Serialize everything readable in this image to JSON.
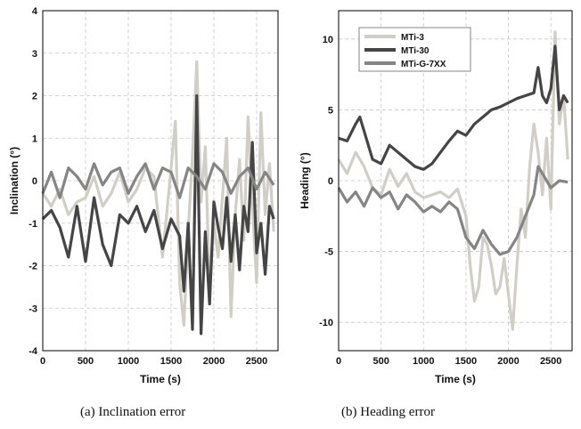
{
  "captions": {
    "a": "(a) Inclination error",
    "b": "(b) Heading error"
  },
  "chart_data": [
    {
      "type": "line",
      "xlabel": "Time (s)",
      "ylabel": "Inclination (°)",
      "xlim": [
        0,
        2750
      ],
      "ylim": [
        -4,
        4
      ],
      "xticks": [
        "0",
        "500",
        "1000",
        "1500",
        "2000",
        "2500"
      ],
      "yticks": [
        "-4",
        "-3",
        "-2",
        "-1",
        "0",
        "1",
        "2",
        "3",
        "4"
      ],
      "grid": true,
      "colors": {
        "MTi-3": "#d0cec6",
        "MTi-30": "#454545",
        "MTi-G-7XX": "#858585"
      },
      "series": [
        {
          "name": "MTi-3",
          "x": [
            0,
            100,
            200,
            300,
            400,
            500,
            600,
            700,
            800,
            900,
            1000,
            1100,
            1200,
            1300,
            1400,
            1500,
            1550,
            1600,
            1650,
            1700,
            1750,
            1800,
            1850,
            1900,
            1950,
            2000,
            2050,
            2100,
            2150,
            2200,
            2250,
            2300,
            2350,
            2400,
            2450,
            2500,
            2550,
            2600,
            2650,
            2700
          ],
          "values": [
            -0.3,
            -0.6,
            -0.2,
            -0.8,
            -0.5,
            -0.4,
            0.1,
            -0.6,
            -0.3,
            0.2,
            -0.5,
            -0.2,
            0.3,
            0.1,
            -1.8,
            0.3,
            1.4,
            -2.4,
            -3.4,
            -1.2,
            0.6,
            2.8,
            -0.5,
            0.8,
            -2.6,
            -1.0,
            -1.8,
            -0.4,
            1.0,
            -3.2,
            -0.8,
            0.5,
            -1.4,
            1.5,
            -0.6,
            -2.4,
            1.6,
            -0.8,
            0.4,
            -1.2
          ]
        },
        {
          "name": "MTi-30",
          "x": [
            0,
            100,
            200,
            300,
            400,
            500,
            600,
            700,
            800,
            900,
            1000,
            1100,
            1200,
            1300,
            1400,
            1500,
            1600,
            1650,
            1700,
            1750,
            1800,
            1850,
            1900,
            1950,
            2000,
            2050,
            2100,
            2150,
            2200,
            2250,
            2300,
            2350,
            2400,
            2450,
            2500,
            2550,
            2600,
            2650,
            2700
          ],
          "values": [
            -0.9,
            -0.7,
            -1.1,
            -1.8,
            -0.6,
            -1.9,
            -0.4,
            -1.5,
            -2.0,
            -0.8,
            -1.0,
            -0.6,
            -1.2,
            -0.7,
            -1.6,
            -0.9,
            -1.3,
            -2.6,
            -1.0,
            -3.5,
            2.0,
            -3.6,
            -1.2,
            -2.9,
            -0.5,
            -1.1,
            -1.6,
            -0.4,
            -1.9,
            -0.8,
            -2.1,
            -0.6,
            -1.2,
            0.9,
            -1.7,
            -1.0,
            -2.2,
            -0.6,
            -0.9
          ]
        },
        {
          "name": "MTi-G-7XX",
          "x": [
            0,
            100,
            200,
            300,
            400,
            500,
            600,
            700,
            800,
            900,
            1000,
            1100,
            1200,
            1300,
            1400,
            1500,
            1600,
            1700,
            1800,
            1900,
            2000,
            2100,
            2200,
            2300,
            2400,
            2500,
            2600,
            2700
          ],
          "values": [
            -0.3,
            0.2,
            -0.4,
            0.3,
            0.1,
            -0.2,
            0.4,
            -0.1,
            0.2,
            0.3,
            -0.3,
            0.1,
            0.4,
            -0.2,
            0.3,
            0.2,
            -0.4,
            0.3,
            0.1,
            -0.2,
            0.4,
            0.2,
            -0.3,
            0.1,
            0.3,
            -0.2,
            0.2,
            -0.1
          ]
        }
      ]
    },
    {
      "type": "line",
      "xlabel": "Time (s)",
      "ylabel": "Heading (°)",
      "xlim": [
        0,
        2750
      ],
      "ylim": [
        -12,
        12
      ],
      "xticks": [
        "0",
        "500",
        "1000",
        "1500",
        "2000",
        "2500"
      ],
      "yticks": [
        "-10",
        "-5",
        "0",
        "5",
        "10"
      ],
      "grid": true,
      "legend": "top-left",
      "colors": {
        "MTi-3": "#d0cec6",
        "MTi-30": "#454545",
        "MTi-G-7XX": "#858585"
      },
      "series": [
        {
          "name": "MTi-3",
          "x": [
            0,
            100,
            200,
            300,
            400,
            500,
            600,
            700,
            800,
            900,
            1000,
            1100,
            1200,
            1300,
            1400,
            1500,
            1550,
            1600,
            1650,
            1700,
            1750,
            1800,
            1850,
            1900,
            1950,
            2000,
            2050,
            2100,
            2150,
            2200,
            2250,
            2300,
            2350,
            2400,
            2450,
            2500,
            2550,
            2600,
            2650,
            2700
          ],
          "values": [
            1.5,
            0.5,
            2.0,
            1.0,
            -0.5,
            -1.0,
            0.8,
            -0.4,
            0.5,
            -0.8,
            -1.2,
            -1.0,
            -0.8,
            -1.2,
            -0.6,
            -2.5,
            -6.0,
            -8.5,
            -7.5,
            -4.0,
            -4.5,
            -6.0,
            -8.0,
            -7.5,
            -5.5,
            -8.0,
            -10.5,
            -6.0,
            -2.0,
            -4.0,
            1.0,
            4.0,
            2.0,
            -1.0,
            3.0,
            -2.0,
            10.5,
            4.0,
            6.0,
            1.5
          ]
        },
        {
          "name": "MTi-30",
          "x": [
            0,
            100,
            200,
            250,
            300,
            400,
            500,
            600,
            700,
            800,
            900,
            1000,
            1100,
            1200,
            1300,
            1400,
            1500,
            1600,
            1700,
            1800,
            1900,
            2000,
            2100,
            2200,
            2300,
            2350,
            2400,
            2450,
            2500,
            2550,
            2600,
            2650,
            2700
          ],
          "values": [
            3.0,
            2.8,
            4.0,
            4.5,
            3.5,
            1.5,
            1.2,
            2.5,
            2.0,
            1.5,
            1.0,
            0.8,
            1.2,
            2.0,
            2.8,
            3.5,
            3.2,
            4.0,
            4.5,
            5.0,
            5.2,
            5.5,
            5.8,
            6.0,
            6.2,
            8.0,
            6.0,
            5.5,
            6.5,
            9.5,
            5.0,
            6.0,
            5.5
          ]
        },
        {
          "name": "MTi-G-7XX",
          "x": [
            0,
            100,
            200,
            300,
            400,
            500,
            600,
            700,
            800,
            900,
            1000,
            1100,
            1200,
            1300,
            1400,
            1500,
            1600,
            1700,
            1800,
            1900,
            2000,
            2100,
            2200,
            2300,
            2350,
            2400,
            2500,
            2600,
            2700
          ],
          "values": [
            -0.5,
            -1.5,
            -0.8,
            -1.8,
            -0.5,
            -1.2,
            -0.8,
            -2.0,
            -1.0,
            -1.5,
            -2.2,
            -1.8,
            -2.2,
            -1.5,
            -2.0,
            -4.0,
            -4.8,
            -3.5,
            -4.5,
            -5.2,
            -5.0,
            -4.0,
            -2.5,
            -1.0,
            1.0,
            0.5,
            -0.5,
            0.0,
            -0.1
          ]
        }
      ]
    }
  ]
}
